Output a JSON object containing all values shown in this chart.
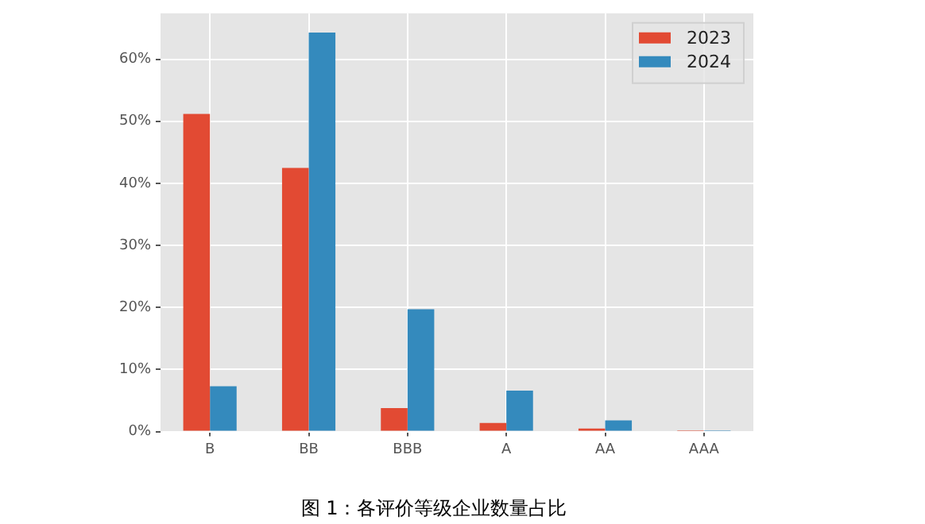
{
  "chart_data": {
    "type": "bar",
    "title": "图 1：各评价等级企业数量占比",
    "categories": [
      "B",
      "BB",
      "BBB",
      "A",
      "AA",
      "AAA"
    ],
    "series": [
      {
        "name": "2023",
        "color": "#e24a33",
        "values": [
          51.2,
          42.5,
          3.8,
          1.4,
          0.5,
          0.2
        ]
      },
      {
        "name": "2024",
        "color": "#348abd",
        "values": [
          7.3,
          64.3,
          19.7,
          6.6,
          1.8,
          0.2
        ]
      }
    ],
    "ylim": [
      0,
      67.4
    ],
    "yticks": [
      {
        "value": 0,
        "label": "0%"
      },
      {
        "value": 10,
        "label": "10%"
      },
      {
        "value": 20,
        "label": "20%"
      },
      {
        "value": 30,
        "label": "30%"
      },
      {
        "value": 40,
        "label": "40%"
      },
      {
        "value": 50,
        "label": "50%"
      },
      {
        "value": 60,
        "label": "60%"
      }
    ],
    "grid": true,
    "legend": "top right"
  }
}
